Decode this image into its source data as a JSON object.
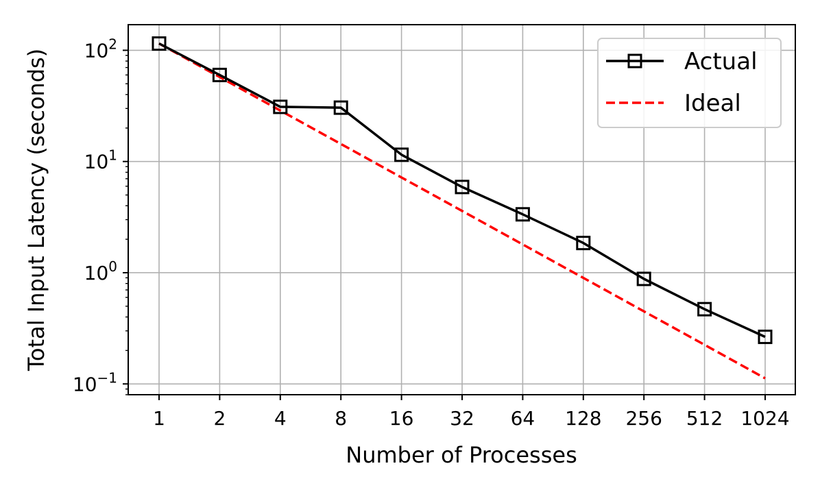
{
  "chart_data": {
    "type": "line",
    "xlabel": "Number of Processes",
    "ylabel": "Total Input Latency (seconds)",
    "x_scale": "log2",
    "y_scale": "log10",
    "categories": [
      "1",
      "2",
      "4",
      "8",
      "16",
      "32",
      "64",
      "128",
      "256",
      "512",
      "1024"
    ],
    "x": [
      1,
      2,
      4,
      8,
      16,
      32,
      64,
      128,
      256,
      512,
      1024
    ],
    "ylim": [
      0.08,
      170
    ],
    "y_ticks": [
      {
        "value": 0.1,
        "base": "10",
        "exp": "−1"
      },
      {
        "value": 1,
        "base": "10",
        "exp": "0"
      },
      {
        "value": 10,
        "base": "10",
        "exp": "1"
      },
      {
        "value": 100,
        "base": "10",
        "exp": "2"
      }
    ],
    "grid": true,
    "legend_position": "top-right",
    "series": [
      {
        "name": "Actual",
        "color": "#000000",
        "style": "solid",
        "marker": "square",
        "values": [
          115,
          60,
          31,
          30.5,
          11.5,
          5.9,
          3.35,
          1.85,
          0.88,
          0.47,
          0.265
        ]
      },
      {
        "name": "Ideal",
        "color": "#ff0000",
        "style": "dashed",
        "marker": "none",
        "values": [
          115,
          57.5,
          28.75,
          14.375,
          7.1875,
          3.59375,
          1.796875,
          0.8984375,
          0.44921875,
          0.224609375,
          0.1123046875
        ]
      }
    ]
  }
}
